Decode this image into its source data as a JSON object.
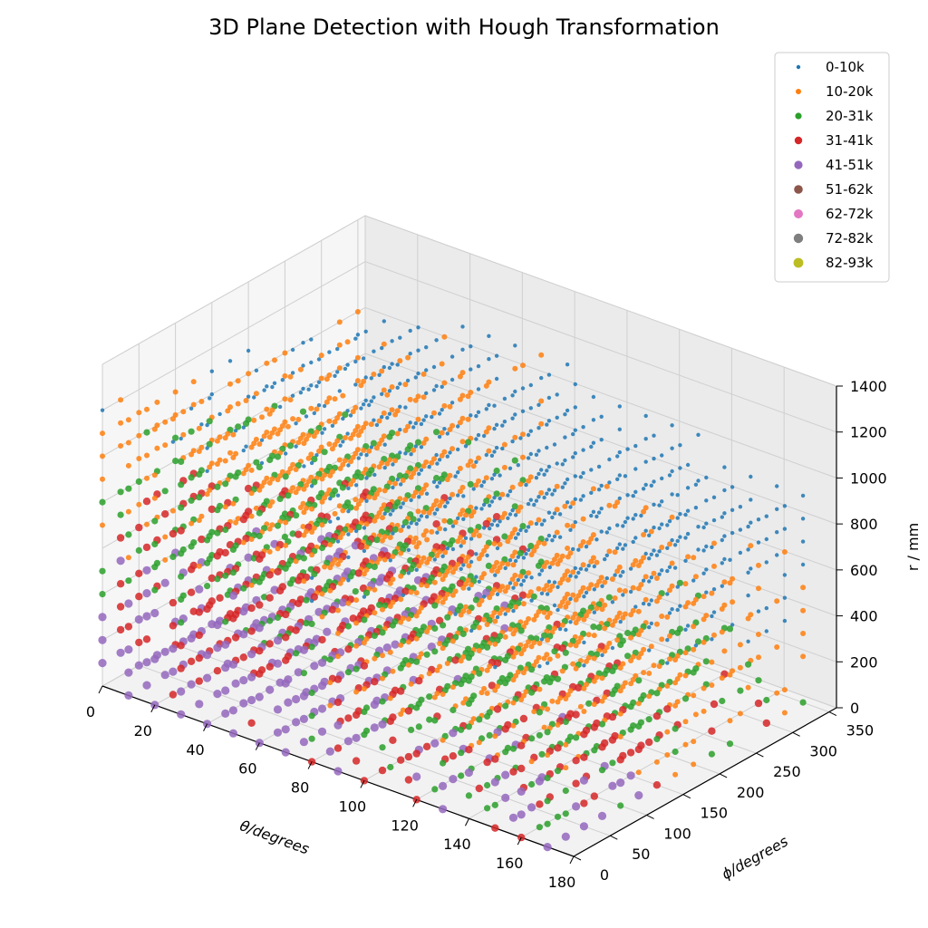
{
  "chart_data": {
    "type": "scatter",
    "title": "3D Plane Detection with Hough Transformation",
    "x_axis": {
      "label": "θ/degrees",
      "ticks": [
        "0",
        "20",
        "40",
        "60",
        "80",
        "100",
        "120",
        "140",
        "160",
        "180"
      ],
      "range": [
        0,
        180
      ]
    },
    "y_axis": {
      "label": "ϕ/degrees",
      "ticks": [
        "0",
        "50",
        "100",
        "150",
        "200",
        "250",
        "300",
        "350"
      ],
      "range": [
        0,
        360
      ]
    },
    "z_axis": {
      "label": "r / mm",
      "ticks": [
        "0",
        "200",
        "400",
        "600",
        "800",
        "1000",
        "1200",
        "1400"
      ],
      "range": [
        0,
        1400
      ]
    },
    "grid": true,
    "legend_position": "top-right",
    "series": [
      {
        "name": "0-10k",
        "color": "#1f77b4"
      },
      {
        "name": "10-20k",
        "color": "#ff7f0e"
      },
      {
        "name": "20-31k",
        "color": "#2ca02c"
      },
      {
        "name": "31-41k",
        "color": "#d62728"
      },
      {
        "name": "41-51k",
        "color": "#9467bd"
      },
      {
        "name": "51-62k",
        "color": "#8c564b"
      },
      {
        "name": "62-72k",
        "color": "#e377c2"
      },
      {
        "name": "72-82k",
        "color": "#7f7f7f"
      },
      {
        "name": "82-93k",
        "color": "#bcbd22"
      }
    ],
    "point_grid": {
      "theta": [
        0,
        10,
        20,
        30,
        40,
        50,
        60,
        70,
        80,
        90,
        100,
        110,
        120,
        130,
        140,
        150,
        160,
        170
      ],
      "phi": [
        0,
        25,
        50,
        75,
        100,
        125,
        150,
        175,
        200,
        225,
        250,
        275,
        300,
        325,
        350
      ],
      "r": [
        0,
        100,
        200,
        300,
        400,
        500,
        600,
        700,
        800,
        900,
        1000,
        1100,
        1200,
        1300
      ],
      "description": "Hough-accumulator bins for a sampled 3D plane grid: each bin is coloured by vote-count range; high-vote bins (31-51k) concentrate at low r near the theta=0 face, low-vote bins (0-10k) dominate at high r and high phi."
    }
  }
}
